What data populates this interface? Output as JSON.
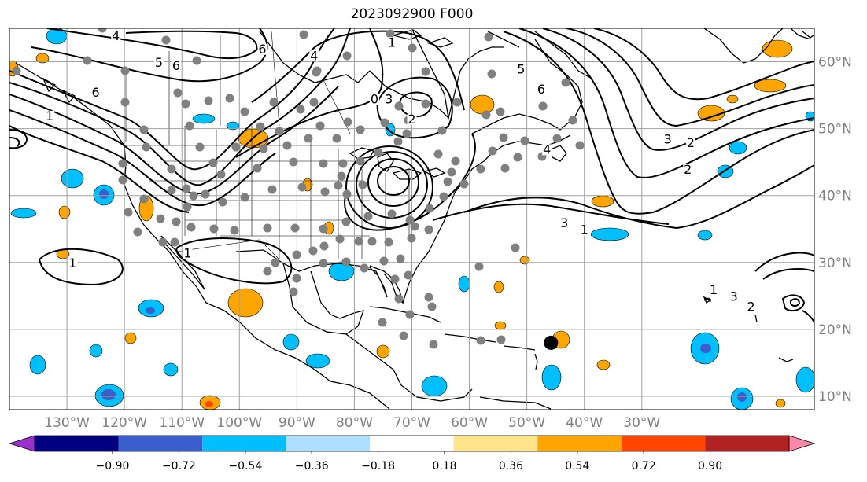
{
  "title": "2023092900 F000",
  "map": {
    "lon_range": [
      -140,
      0
    ],
    "lat_range": [
      8,
      65
    ],
    "lon_ticks": [
      {
        "lon": -130,
        "label": "130°W"
      },
      {
        "lon": -120,
        "label": "120°W"
      },
      {
        "lon": -110,
        "label": "110°W"
      },
      {
        "lon": -100,
        "label": "100°W"
      },
      {
        "lon": -90,
        "label": "90°W"
      },
      {
        "lon": -80,
        "label": "80°W"
      },
      {
        "lon": -70,
        "label": "70°W"
      },
      {
        "lon": -60,
        "label": "60°W"
      },
      {
        "lon": -50,
        "label": "50°W"
      },
      {
        "lon": -40,
        "label": "40°W"
      },
      {
        "lon": -30,
        "label": "30°W"
      }
    ],
    "lat_ticks": [
      {
        "lat": 10,
        "label": "10°N"
      },
      {
        "lat": 20,
        "label": "20°N"
      },
      {
        "lat": 30,
        "label": "30°N"
      },
      {
        "lat": 40,
        "label": "40°N"
      },
      {
        "lat": 50,
        "label": "50°N"
      },
      {
        "lat": 60,
        "label": "60°N"
      }
    ],
    "contour_labels": [
      {
        "text": "4",
        "lon": -121.5,
        "lat": 63.5
      },
      {
        "text": "6",
        "lon": -96,
        "lat": 61.5
      },
      {
        "text": "4",
        "lon": -87,
        "lat": 60.5
      },
      {
        "text": "5",
        "lon": -114,
        "lat": 59.5
      },
      {
        "text": "6",
        "lon": -111,
        "lat": 59
      },
      {
        "text": "6",
        "lon": -125,
        "lat": 55
      },
      {
        "text": "1",
        "lon": -133,
        "lat": 51.5
      },
      {
        "text": "1",
        "lon": -73.5,
        "lat": 62.5
      },
      {
        "text": "0",
        "lon": -76.5,
        "lat": 54
      },
      {
        "text": "3",
        "lon": -74,
        "lat": 54
      },
      {
        "text": "2",
        "lon": -70,
        "lat": 51
      },
      {
        "text": "5",
        "lon": -51,
        "lat": 58.5
      },
      {
        "text": "6",
        "lon": -47.5,
        "lat": 55.5
      },
      {
        "text": "4",
        "lon": -46.5,
        "lat": 46.5
      },
      {
        "text": "3",
        "lon": -25.5,
        "lat": 48
      },
      {
        "text": "2",
        "lon": -21.5,
        "lat": 47.5
      },
      {
        "text": "2",
        "lon": -22,
        "lat": 43.5
      },
      {
        "text": "3",
        "lon": -43.5,
        "lat": 35.5
      },
      {
        "text": "1",
        "lon": -40,
        "lat": 34.5
      },
      {
        "text": "1",
        "lon": -129,
        "lat": 29.5
      },
      {
        "text": "1",
        "lon": -109,
        "lat": 31
      },
      {
        "text": "1",
        "lon": -17.5,
        "lat": 25.5
      },
      {
        "text": "3",
        "lon": -14,
        "lat": 24.5
      },
      {
        "text": "2",
        "lon": -11,
        "lat": 23
      }
    ],
    "cyclone_marker": {
      "lon": -45.8,
      "lat": 18
    }
  },
  "colorbar": {
    "levels": [
      "−0.90",
      "−0.72",
      "−0.54",
      "−0.36",
      "−0.18",
      "0.18",
      "0.36",
      "0.54",
      "0.72",
      "0.90"
    ],
    "under_color": "#9932CC",
    "over_color": "#FF88AA",
    "colors": [
      "#9932CC",
      "#000080",
      "#3A5FCD",
      "#00BFFF",
      "#ADDFFF",
      "#FFFFFF",
      "#FFE48A",
      "#FFA500",
      "#FF4500",
      "#B22222",
      "#FF88AA"
    ]
  }
}
